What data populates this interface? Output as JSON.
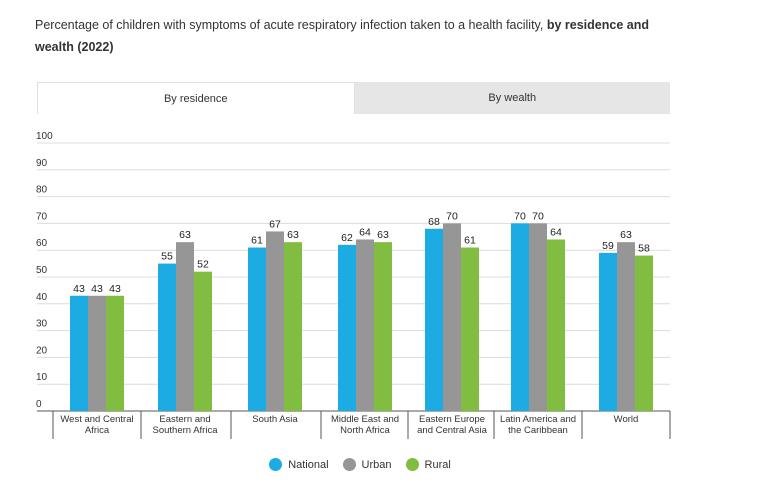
{
  "header": {
    "title_plain": "Percentage of children with symptoms of acute respiratory infection taken to a health facility, ",
    "title_bold": "by residence and wealth (2022)"
  },
  "tabs": [
    {
      "label": "By residence",
      "active": true
    },
    {
      "label": "By wealth",
      "active": false
    }
  ],
  "chart_data": {
    "type": "bar",
    "title": "Percentage of children with symptoms of acute respiratory infection taken to a health facility, by residence and wealth (2022)",
    "xlabel": "",
    "ylabel": "",
    "ylim": [
      0,
      100
    ],
    "yticks": [
      0,
      10,
      20,
      30,
      40,
      50,
      60,
      70,
      80,
      90,
      100
    ],
    "grid": true,
    "legend_position": "bottom-center",
    "categories": [
      [
        "West and Central",
        "Africa"
      ],
      [
        "Eastern and",
        "Southern Africa"
      ],
      [
        "South Asia"
      ],
      [
        "Middle East and",
        "North Africa"
      ],
      [
        "Eastern Europe",
        "and Central Asia"
      ],
      [
        "Latin America and",
        "the Caribbean"
      ],
      [
        "World"
      ]
    ],
    "series": [
      {
        "name": "National",
        "color": "#1cabe2",
        "values": [
          43,
          55,
          61,
          62,
          68,
          70,
          59
        ]
      },
      {
        "name": "Urban",
        "color": "#969696",
        "values": [
          43,
          63,
          67,
          64,
          70,
          70,
          63
        ]
      },
      {
        "name": "Rural",
        "color": "#80bd41",
        "values": [
          43,
          52,
          63,
          63,
          61,
          64,
          58
        ]
      }
    ]
  }
}
